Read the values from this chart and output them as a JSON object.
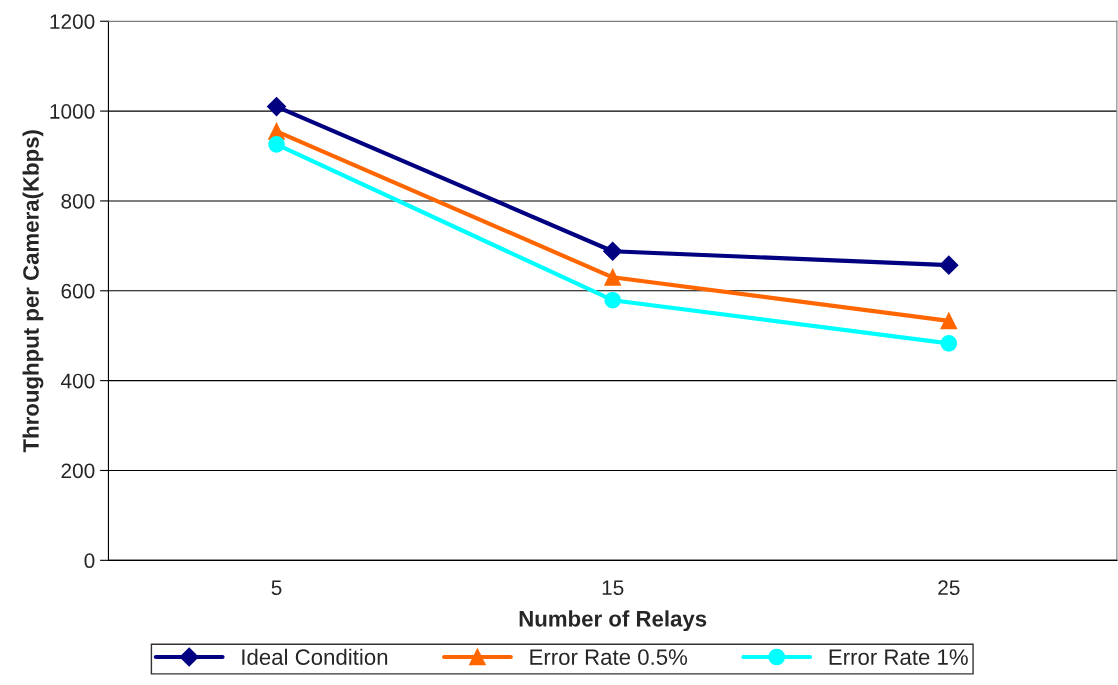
{
  "chart_data": {
    "type": "line",
    "xlabel": "Number of Relays",
    "ylabel": "Throughput per Camera(Kbps)",
    "categories": [
      "5",
      "15",
      "25"
    ],
    "series": [
      {
        "name": "Ideal Condition",
        "color": "#000080",
        "values": [
          1010,
          688,
          657
        ],
        "marker": "diamond"
      },
      {
        "name": "Error Rate 0.5%",
        "color": "#ff6600",
        "values": [
          955,
          630,
          533
        ],
        "marker": "triangle"
      },
      {
        "name": "Error Rate 1%",
        "color": "#00ffff",
        "values": [
          926,
          579,
          483
        ],
        "marker": "circle"
      }
    ],
    "ylim": [
      0,
      1200
    ],
    "yticks": [
      0,
      200,
      400,
      600,
      800,
      1000,
      1200
    ],
    "grid": "y",
    "legend": "bottom",
    "line_style": "solid"
  }
}
